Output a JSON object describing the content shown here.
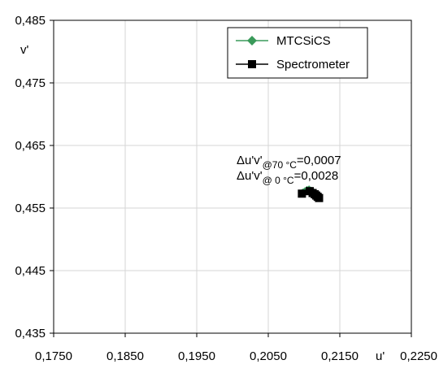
{
  "chart_data": {
    "type": "scatter",
    "xlabel": "u'",
    "ylabel": "v'",
    "xlim": [
      0.175,
      0.225
    ],
    "ylim": [
      0.435,
      0.485
    ],
    "x_ticks": [
      "0,1750",
      "0,1850",
      "0,1950",
      "0,2050",
      "0,2150",
      "0,2250"
    ],
    "y_ticks": [
      "0,435",
      "0,445",
      "0,455",
      "0,465",
      "0,475",
      "0,485"
    ],
    "x_tick_values": [
      0.175,
      0.185,
      0.195,
      0.205,
      0.215,
      0.225
    ],
    "y_tick_values": [
      0.435,
      0.445,
      0.455,
      0.465,
      0.475,
      0.485
    ],
    "grid": true,
    "legend": "top-right",
    "series": [
      {
        "name": "MTCSiCS",
        "marker": "diamond",
        "color": "#3a9a5a",
        "x": [
          0.2098,
          0.2101,
          0.2104,
          0.2107,
          0.211,
          0.2113,
          0.2116
        ],
        "y": [
          0.4576,
          0.4578,
          0.458,
          0.4581,
          0.4579,
          0.4577,
          0.4575
        ]
      },
      {
        "name": "Spectrometer",
        "marker": "square",
        "color": "#000000",
        "x": [
          0.2097,
          0.2108,
          0.2112,
          0.2115,
          0.2117,
          0.2119,
          0.2121
        ],
        "y": [
          0.4573,
          0.4577,
          0.4574,
          0.4572,
          0.457,
          0.4568,
          0.4566
        ]
      }
    ],
    "annotations": [
      {
        "prefix": "Δu'v'",
        "sub": "@70 °C",
        "suffix": "=0,0007"
      },
      {
        "prefix": "Δu'v'",
        "sub": "@ 0 °C",
        "suffix": "=0,0028"
      }
    ]
  }
}
